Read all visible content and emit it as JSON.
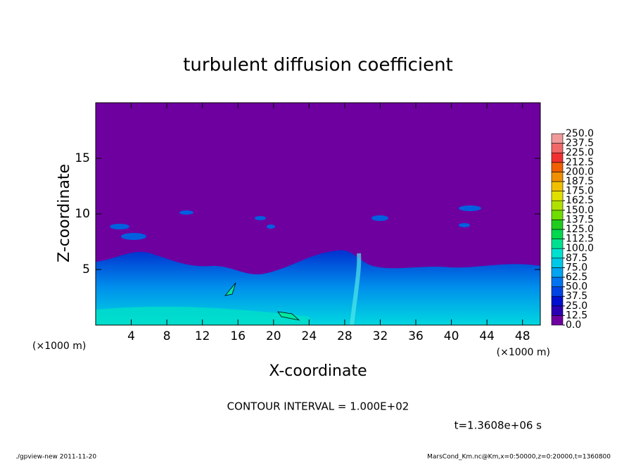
{
  "chart_data": {
    "type": "contour",
    "title": "turbulent diffusion coefficient",
    "x_label": "X-coordinate",
    "y_label": "Z-coordinate",
    "x_unit": "(×1000 m)",
    "y_unit": "(×1000 m)",
    "xlim": [
      0,
      50
    ],
    "ylim": [
      0,
      20
    ],
    "xticks": [
      4,
      8,
      12,
      16,
      20,
      24,
      28,
      32,
      36,
      40,
      44,
      48
    ],
    "yticks": [
      5,
      10,
      15
    ],
    "contour_note": "CONTOUR INTERVAL = 1.000E+02",
    "time_label": "t=1.3608e+06 s",
    "footer_left": "./gpview-new   2011-11-20",
    "footer_right": "MarsCond_Km.nc@Km,x=0:50000,z=0:20000,t=1360800",
    "colorbar": {
      "ticks": [
        {
          "value": 0,
          "label": "0.0"
        },
        12.5,
        {
          "value": 25,
          "label": "25.0"
        },
        37.5,
        {
          "value": 50,
          "label": "50.0"
        },
        62.5,
        {
          "value": 75,
          "label": "75.0"
        },
        87.5,
        {
          "value": 100,
          "label": "100.0"
        },
        112.5,
        {
          "value": 125,
          "label": "125.0"
        },
        137.5,
        {
          "value": 150,
          "label": "150.0"
        },
        162.5,
        {
          "value": 175,
          "label": "175.0"
        },
        187.5,
        {
          "value": 200,
          "label": "200.0"
        },
        212.5,
        {
          "value": 225,
          "label": "225.0"
        },
        237.5,
        {
          "value": 250,
          "label": "250.0"
        }
      ],
      "colors": [
        "#6e00a0",
        "#2a00b4",
        "#0010d0",
        "#0044e4",
        "#0074f0",
        "#00a4f0",
        "#00c8e8",
        "#00e0d0",
        "#00e090",
        "#00d850",
        "#20cc20",
        "#70dc00",
        "#b0e000",
        "#e0e000",
        "#f0c000",
        "#f09000",
        "#f06000",
        "#f03030",
        "#f06868",
        "#f09a9a"
      ]
    }
  }
}
